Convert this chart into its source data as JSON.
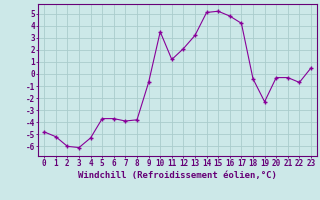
{
  "x": [
    0,
    1,
    2,
    3,
    4,
    5,
    6,
    7,
    8,
    9,
    10,
    11,
    12,
    13,
    14,
    15,
    16,
    17,
    18,
    19,
    20,
    21,
    22,
    23
  ],
  "y": [
    -4.8,
    -5.2,
    -6.0,
    -6.1,
    -5.3,
    -3.7,
    -3.7,
    -3.9,
    -3.8,
    -0.7,
    3.5,
    1.2,
    2.1,
    3.2,
    5.1,
    5.2,
    4.8,
    4.2,
    -0.4,
    -2.3,
    -0.3,
    -0.3,
    -0.7,
    0.5
  ],
  "line_color": "#880099",
  "marker": "+",
  "marker_size": 3,
  "bg_color": "#cce8e8",
  "grid_color": "#aacccc",
  "xlabel": "Windchill (Refroidissement éolien,°C)",
  "xlim_min": -0.5,
  "xlim_max": 23.5,
  "ylim_min": -6.8,
  "ylim_max": 5.8,
  "yticks": [
    5,
    4,
    3,
    2,
    1,
    0,
    -1,
    -2,
    -3,
    -4,
    -5,
    -6
  ],
  "xticks": [
    0,
    1,
    2,
    3,
    4,
    5,
    6,
    7,
    8,
    9,
    10,
    11,
    12,
    13,
    14,
    15,
    16,
    17,
    18,
    19,
    20,
    21,
    22,
    23
  ],
  "tick_fontsize": 5.5,
  "xlabel_fontsize": 6.5,
  "axis_color": "#660077",
  "linewidth": 0.8,
  "marker_linewidth": 1.0
}
